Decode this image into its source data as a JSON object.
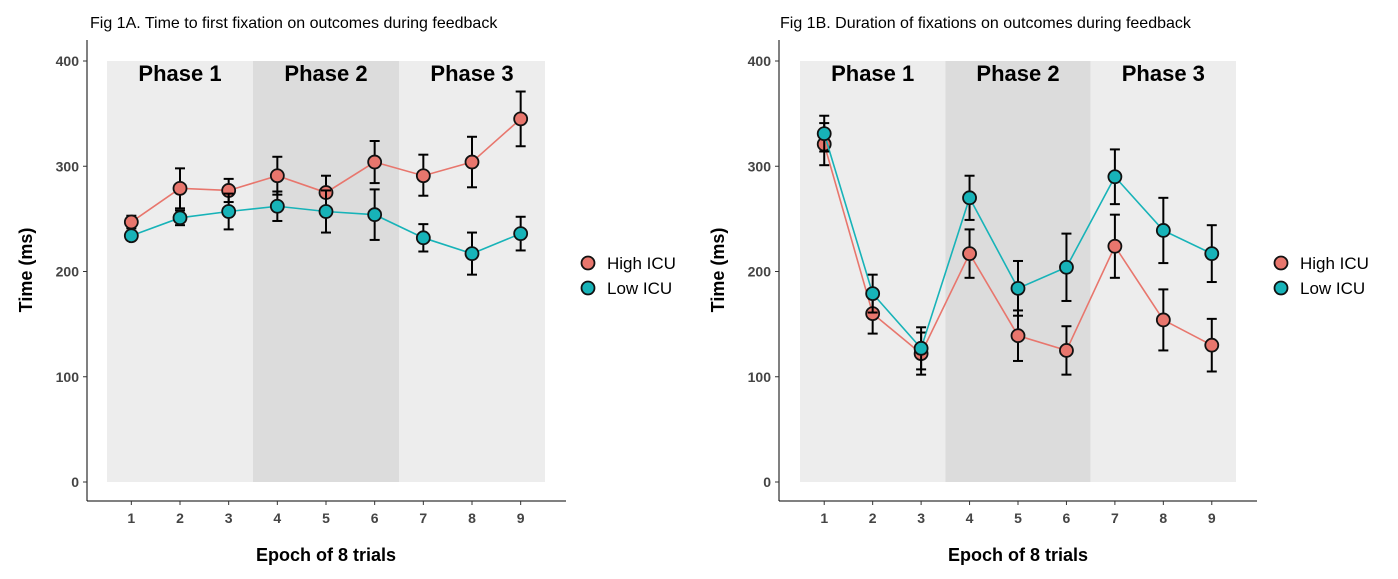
{
  "colors": {
    "high": "#E8766D",
    "low": "#17B3B8",
    "phase_light": "#EDEDED",
    "phase_dark": "#DCDCDC"
  },
  "legend": [
    {
      "label": "High ICU",
      "color": "#E8766D"
    },
    {
      "label": "Low ICU",
      "color": "#17B3B8"
    }
  ],
  "chart_data": [
    {
      "type": "line",
      "title": "Fig 1A. Time to first fixation on outcomes during feedback",
      "xlabel": "Epoch of 8 trials",
      "ylabel": "Time (ms)",
      "x": [
        1,
        2,
        3,
        4,
        5,
        6,
        7,
        8,
        9
      ],
      "xlim": [
        0.5,
        9.5
      ],
      "ylim": [
        0,
        400
      ],
      "yticks": [
        0,
        100,
        200,
        300,
        400
      ],
      "phases": [
        {
          "label": "Phase 1",
          "from": 0.5,
          "to": 3.5
        },
        {
          "label": "Phase 2",
          "from": 3.5,
          "to": 6.5
        },
        {
          "label": "Phase 3",
          "from": 6.5,
          "to": 9.5
        }
      ],
      "series": [
        {
          "name": "High ICU",
          "values": [
            247,
            279,
            277,
            291,
            275,
            304,
            291,
            304,
            345
          ],
          "err_low": [
            241,
            260,
            266,
            273,
            259,
            284,
            272,
            280,
            319
          ],
          "err_high": [
            253,
            298,
            288,
            309,
            291,
            324,
            311,
            328,
            371
          ]
        },
        {
          "name": "Low ICU",
          "values": [
            234,
            251,
            257,
            262,
            257,
            254,
            232,
            217,
            236
          ],
          "err_low": [
            230,
            244,
            240,
            248,
            237,
            230,
            219,
            197,
            220
          ],
          "err_high": [
            238,
            258,
            274,
            276,
            277,
            278,
            245,
            237,
            252
          ]
        }
      ]
    },
    {
      "type": "line",
      "title": "Fig 1B. Duration of fixations on outcomes during feedback",
      "xlabel": "Epoch of 8 trials",
      "ylabel": "Time (ms)",
      "x": [
        1,
        2,
        3,
        4,
        5,
        6,
        7,
        8,
        9
      ],
      "xlim": [
        0.5,
        9.5
      ],
      "ylim": [
        0,
        400
      ],
      "yticks": [
        0,
        100,
        200,
        300,
        400
      ],
      "phases": [
        {
          "label": "Phase 1",
          "from": 0.5,
          "to": 3.5
        },
        {
          "label": "Phase 2",
          "from": 3.5,
          "to": 6.5
        },
        {
          "label": "Phase 3",
          "from": 6.5,
          "to": 9.5
        }
      ],
      "series": [
        {
          "name": "High ICU",
          "values": [
            321,
            160,
            122,
            217,
            139,
            125,
            224,
            154,
            130
          ],
          "err_low": [
            301,
            141,
            102,
            194,
            115,
            102,
            194,
            125,
            105
          ],
          "err_high": [
            341,
            179,
            142,
            240,
            163,
            148,
            254,
            183,
            155
          ]
        },
        {
          "name": "Low ICU",
          "values": [
            331,
            179,
            127,
            270,
            184,
            204,
            290,
            239,
            217
          ],
          "err_low": [
            314,
            161,
            107,
            249,
            158,
            172,
            264,
            208,
            190
          ],
          "err_high": [
            348,
            197,
            147,
            291,
            210,
            236,
            316,
            270,
            244
          ]
        }
      ]
    }
  ]
}
